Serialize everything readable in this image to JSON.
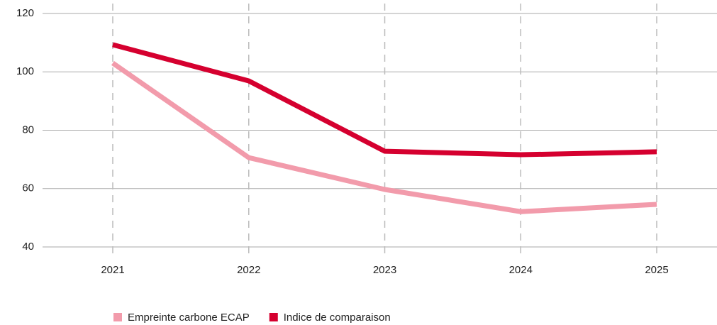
{
  "chart_data": {
    "type": "line",
    "categories": [
      "2021",
      "2022",
      "2023",
      "2024",
      "2025"
    ],
    "series": [
      {
        "name": "Empreinte carbone ECAP",
        "color": "#f29bab",
        "values": [
          103,
          70.6,
          59.7,
          52.1,
          54.6
        ]
      },
      {
        "name": "Indice de comparaison",
        "color": "#d5002f",
        "values": [
          109.3,
          96.9,
          72.8,
          71.6,
          72.6
        ]
      }
    ],
    "ylim": [
      40,
      120
    ],
    "yticks": [
      40,
      60,
      80,
      100,
      120
    ],
    "grid": true
  }
}
